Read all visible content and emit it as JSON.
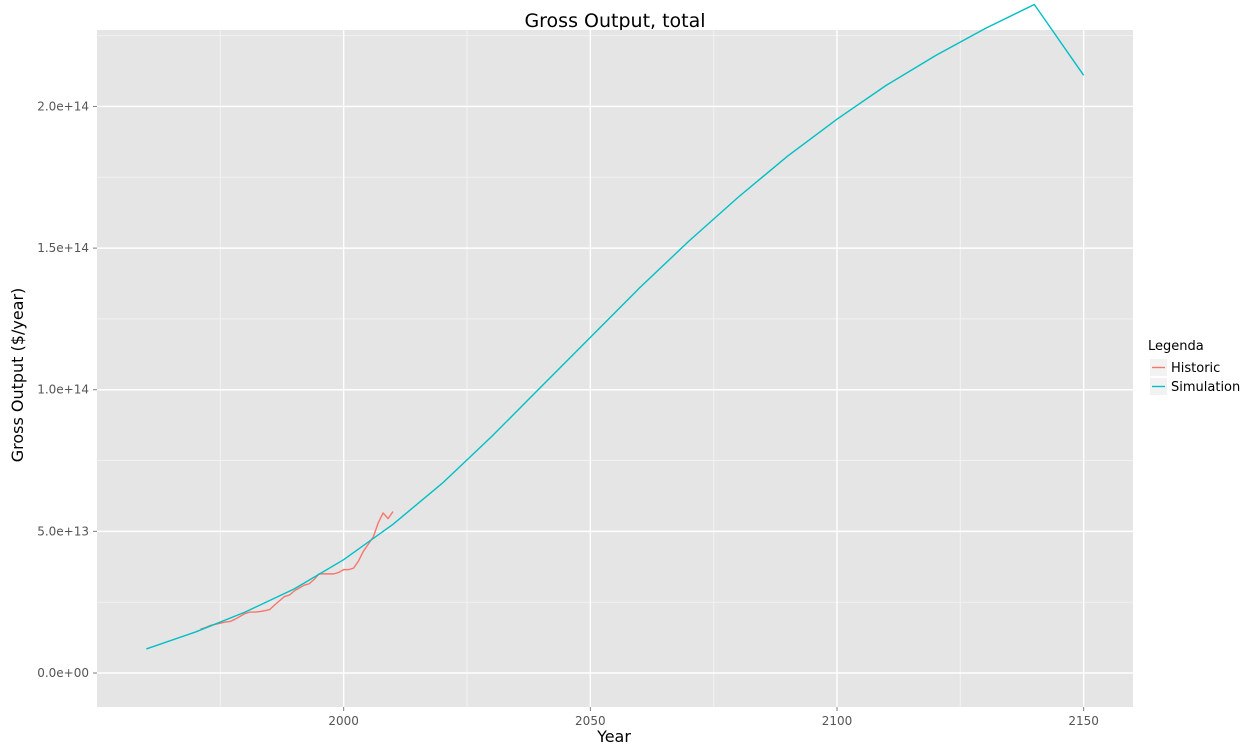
{
  "chart_data": {
    "type": "line",
    "title": "Gross Output, total",
    "xlabel": "Year",
    "ylabel": "Gross Output ($/year)",
    "xlim": [
      1950,
      2160
    ],
    "ylim": [
      -12000000000000.0,
      227000000000000.0
    ],
    "x_ticks": [
      2000,
      2050,
      2100,
      2150
    ],
    "x_tick_labels": [
      "2000",
      "2050",
      "2100",
      "2150"
    ],
    "y_ticks": [
      0,
      50000000000000.0,
      100000000000000.0,
      150000000000000.0,
      200000000000000.0
    ],
    "y_tick_labels": [
      "0.0e+00",
      "5.0e+13",
      "1.0e+14",
      "1.5e+14",
      "2.0e+14"
    ],
    "grid": true,
    "legend": {
      "title": "Legenda",
      "position": "right"
    },
    "series": [
      {
        "name": "Historic",
        "color": "#F8766D",
        "x": [
          1971,
          1972,
          1973,
          1974,
          1975,
          1976,
          1977,
          1978,
          1979,
          1980,
          1981,
          1982,
          1983,
          1984,
          1985,
          1986,
          1987,
          1988,
          1989,
          1990,
          1991,
          1992,
          1993,
          1994,
          1995,
          1996,
          1997,
          1998,
          1999,
          2000,
          2001,
          2002,
          2003,
          2004,
          2005,
          2006,
          2007,
          2008,
          2009,
          2010
        ],
        "values": [
          15500000000000.0,
          16000000000000.0,
          16800000000000.0,
          17200000000000.0,
          17600000000000.0,
          18000000000000.0,
          18200000000000.0,
          19000000000000.0,
          20000000000000.0,
          21000000000000.0,
          21500000000000.0,
          21500000000000.0,
          21700000000000.0,
          22000000000000.0,
          22400000000000.0,
          24000000000000.0,
          25500000000000.0,
          27000000000000.0,
          27500000000000.0,
          29000000000000.0,
          30000000000000.0,
          31000000000000.0,
          31500000000000.0,
          33000000000000.0,
          35000000000000.0,
          35000000000000.0,
          35000000000000.0,
          35000000000000.0,
          35500000000000.0,
          36500000000000.0,
          36500000000000.0,
          37000000000000.0,
          39500000000000.0,
          43000000000000.0,
          45500000000000.0,
          48000000000000.0,
          53000000000000.0,
          56500000000000.0,
          54500000000000.0,
          57000000000000.0
        ]
      },
      {
        "name": "Simulation",
        "color": "#00BFC4",
        "x": [
          1960,
          1970,
          1980,
          1990,
          2000,
          2010,
          2020,
          2030,
          2040,
          2050,
          2060,
          2070,
          2080,
          2090,
          2100,
          2110,
          2120,
          2130,
          2140,
          2150
        ],
        "values": [
          8500000000000.0,
          14500000000000.0,
          21500000000000.0,
          29700000000000.0,
          40000000000000.0,
          52500000000000.0,
          67000000000000.0,
          83500000000000.0,
          101000000000000.0,
          118500000000000.0,
          136000000000000.0,
          152500000000000.0,
          168000000000000.0,
          182500000000000.0,
          195500000000000.0,
          207500000000000.0,
          218000000000000.0,
          227500000000000.0,
          236000000000000.0,
          211000000000000.0
        ]
      }
    ]
  }
}
